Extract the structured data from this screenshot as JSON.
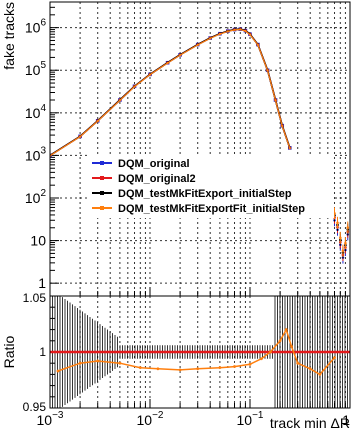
{
  "chart_data": [
    {
      "type": "line",
      "xlabel": "track min ΔR",
      "ylabel": "fake tracks",
      "x_scale": "log",
      "y_scale": "log",
      "xlim": [
        0.001,
        1
      ],
      "ylim": [
        0.5,
        4000000
      ],
      "grid": true,
      "legend_position": "middle-left",
      "x_tick_labels": [
        {
          "v": 0.001,
          "b": "10",
          "e": "−3"
        },
        {
          "v": 0.01,
          "b": "10",
          "e": "−2"
        },
        {
          "v": 0.1,
          "b": "10",
          "e": "−1"
        },
        {
          "v": 1,
          "b": "1",
          "e": ""
        }
      ],
      "y_tick_labels": [
        {
          "v": 1,
          "b": "1",
          "e": ""
        },
        {
          "v": 10,
          "b": "10",
          "e": ""
        },
        {
          "v": 100,
          "b": "10",
          "e": "2"
        },
        {
          "v": 1000,
          "b": "10",
          "e": "3"
        },
        {
          "v": 10000,
          "b": "10",
          "e": "4"
        },
        {
          "v": 100000,
          "b": "10",
          "e": "5"
        },
        {
          "v": 1000000,
          "b": "10",
          "e": "6"
        }
      ],
      "series": [
        {
          "name": "DQM_original",
          "color": "#1f2bd6"
        },
        {
          "name": "DQM_original2",
          "color": "#e31a1c"
        },
        {
          "name": "DQM_testMkFitExport_initialStep",
          "color": "#000000"
        },
        {
          "name": "DQM_testMkFitExportFit_initialStep",
          "color": "#ff7f0e"
        }
      ],
      "x": [
        0.001,
        0.002,
        0.003,
        0.005,
        0.007,
        0.01,
        0.015,
        0.02,
        0.03,
        0.04,
        0.05,
        0.06,
        0.07,
        0.08,
        0.09,
        0.1,
        0.12,
        0.15,
        0.18,
        0.21,
        0.25
      ],
      "y": [
        1000,
        2800,
        6500,
        20000,
        42000,
        80000,
        150000,
        230000,
        400000,
        570000,
        720000,
        830000,
        900000,
        920000,
        850000,
        700000,
        400000,
        100000,
        20000,
        5000,
        1500
      ],
      "tail_x": [
        0.7,
        0.75,
        0.8,
        0.85,
        0.9,
        0.95
      ],
      "tail_y": [
        30,
        18,
        8,
        4,
        6,
        14
      ]
    },
    {
      "type": "line",
      "xlabel": "track min ΔR",
      "ylabel": "Ratio",
      "x_scale": "log",
      "xlim": [
        0.001,
        1
      ],
      "ylim": [
        0.95,
        1.05
      ],
      "grid": true,
      "y_tick_labels": [
        "0.95",
        "1",
        "1.05"
      ],
      "reference_value": 1.0,
      "ratio_series": {
        "name": "DQM_testMkFitExportFit_initialStep",
        "x": [
          0.0012,
          0.002,
          0.003,
          0.005,
          0.008,
          0.012,
          0.02,
          0.03,
          0.05,
          0.07,
          0.1,
          0.13,
          0.16,
          0.2,
          0.23,
          0.26,
          0.3,
          0.4,
          0.5,
          0.7
        ],
        "y": [
          0.983,
          0.99,
          0.992,
          0.99,
          0.986,
          0.985,
          0.984,
          0.985,
          0.986,
          0.987,
          0.989,
          0.994,
          1.0,
          1.01,
          1.02,
          1.005,
          0.99,
          0.985,
          0.98,
          0.995
        ]
      }
    }
  ]
}
